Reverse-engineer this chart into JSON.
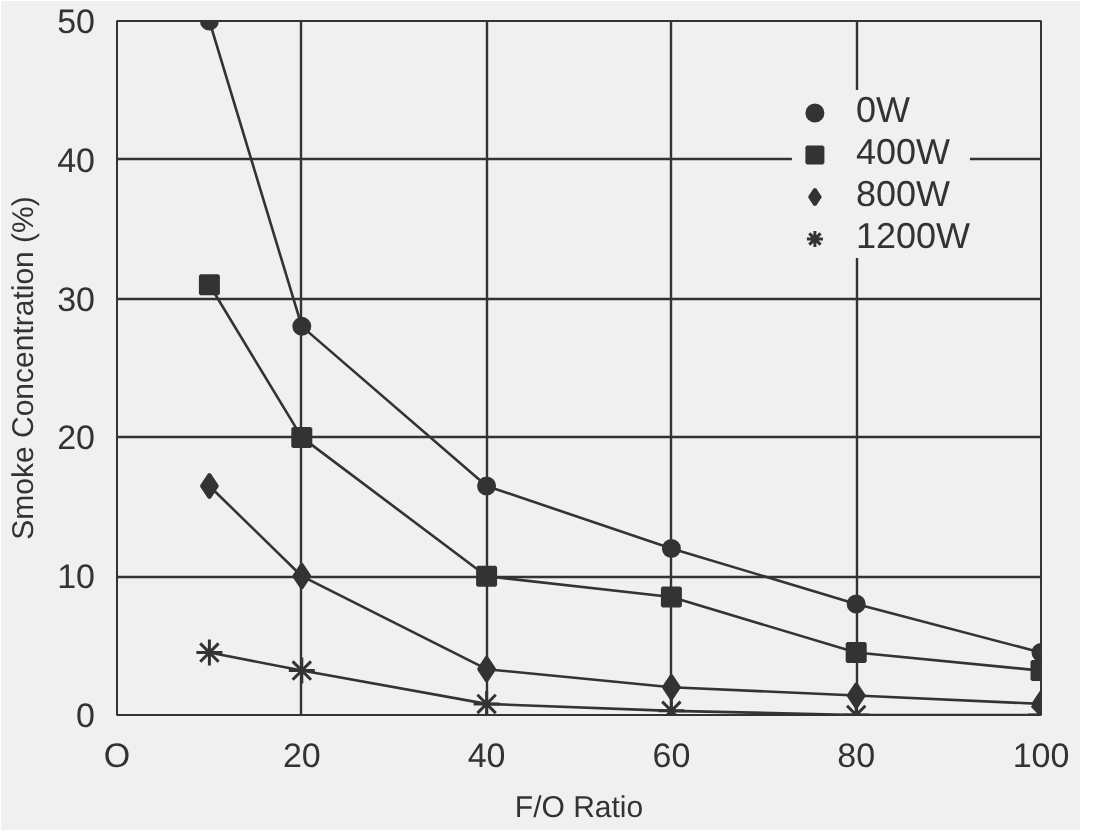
{
  "chart_data": {
    "type": "line",
    "xlabel": "F/O Ratio",
    "ylabel": "Smoke Concentration (%)",
    "x": [
      10,
      20,
      40,
      60,
      80,
      100
    ],
    "series": [
      {
        "name": "0W",
        "color": "#333333",
        "marker": "circle",
        "values": [
          50,
          28,
          16.5,
          12,
          8,
          4.5
        ]
      },
      {
        "name": "400W",
        "color": "#333333",
        "marker": "square",
        "values": [
          31,
          20,
          10,
          8.5,
          4.5,
          3.2
        ]
      },
      {
        "name": "800W",
        "color": "#333333",
        "marker": "diamond",
        "values": [
          16.5,
          10,
          3.3,
          2,
          1.4,
          0.8
        ]
      },
      {
        "name": "1200W",
        "color": "#333333",
        "marker": "cross",
        "values": [
          4.5,
          3.2,
          0.8,
          0.3,
          0,
          0
        ]
      }
    ],
    "xlim": [
      0,
      100
    ],
    "ylim": [
      0,
      50
    ],
    "xticks": [
      {
        "value": 0,
        "label": "O"
      },
      20,
      40,
      60,
      80,
      100
    ],
    "yticks": [
      0,
      10,
      20,
      30,
      40,
      50
    ],
    "grid": true,
    "legend": "top right",
    "line_style": "solid"
  }
}
